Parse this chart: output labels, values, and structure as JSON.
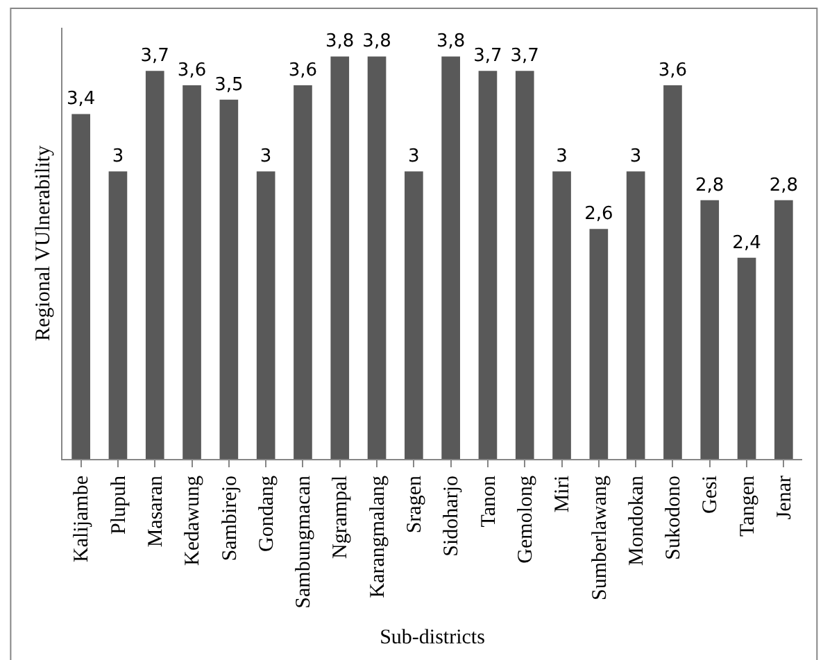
{
  "chart_data": {
    "type": "bar",
    "xlabel": "Sub-districts",
    "ylabel": "Regional VUlnerability",
    "categories": [
      "Kalijambe",
      "Plupuh",
      "Masaran",
      "Kedawung",
      "Sambirejo",
      "Gondang",
      "Sambungmacan",
      "Ngrampal",
      "Karangmalang",
      "Sragen",
      "Sidoharjo",
      "Tanon",
      "Gemolong",
      "Miri",
      "Sumberlawang",
      "Mondokan",
      "Sukodono",
      "Gesi",
      "Tangen",
      "Jenar"
    ],
    "values": [
      3.4,
      3,
      3.7,
      3.6,
      3.5,
      3,
      3.6,
      3.8,
      3.8,
      3,
      3.8,
      3.7,
      3.7,
      3,
      2.6,
      3,
      3.6,
      2.8,
      2.4,
      2.8
    ],
    "value_labels": [
      "3,4",
      "3",
      "3,7",
      "3,6",
      "3,5",
      "3",
      "3,6",
      "3,8",
      "3,8",
      "3",
      "3,8",
      "3,7",
      "3,7",
      "3",
      "2,6",
      "3",
      "3,6",
      "2,8",
      "2,4",
      "2,8"
    ],
    "color": "#595959",
    "ylim": [
      1,
      4
    ]
  }
}
